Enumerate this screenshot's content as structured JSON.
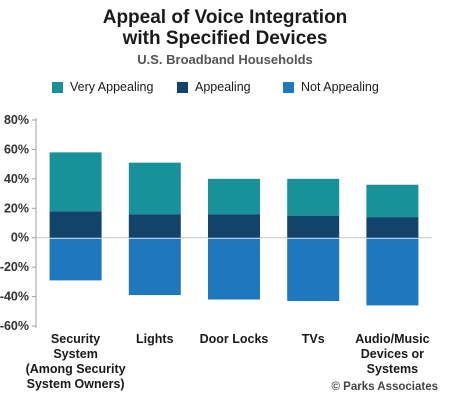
{
  "title_line1": "Appeal of Voice Integration",
  "title_line2": "with Specified Devices",
  "subtitle": "U.S. Broadband Households",
  "credit": "© Parks Associates",
  "colors": {
    "very_appealing": "#18919a",
    "appealing": "#12436a",
    "not_appealing": "#1f77be"
  },
  "chart_data": {
    "type": "bar",
    "stacked": true,
    "categories": [
      "Security System (Among Security System Owners)",
      "Lights",
      "Door Locks",
      "TVs",
      "Audio/Music Devices or Systems"
    ],
    "category_lines": [
      [
        "Security",
        "System",
        "(Among Security",
        "System Owners)"
      ],
      [
        "Lights"
      ],
      [
        "Door Locks"
      ],
      [
        "TVs"
      ],
      [
        "Audio/Music",
        "Devices or",
        "Systems"
      ]
    ],
    "series": [
      {
        "name": "Very Appealing",
        "values": [
          40,
          35,
          24,
          25,
          22
        ]
      },
      {
        "name": "Appealing",
        "values": [
          18,
          16,
          16,
          15,
          14
        ]
      },
      {
        "name": "Not Appealing",
        "values": [
          -29,
          -39,
          -42,
          -43,
          -46
        ]
      }
    ],
    "y_ticks": [
      80,
      60,
      40,
      20,
      0,
      -20,
      -40,
      -60
    ],
    "y_tick_labels": [
      "80%",
      "60%",
      "40%",
      "20%",
      "0%",
      "-20%",
      "-40%",
      "-60%"
    ],
    "ylim": [
      -60,
      80
    ],
    "legend_position": "top",
    "grid": false
  }
}
